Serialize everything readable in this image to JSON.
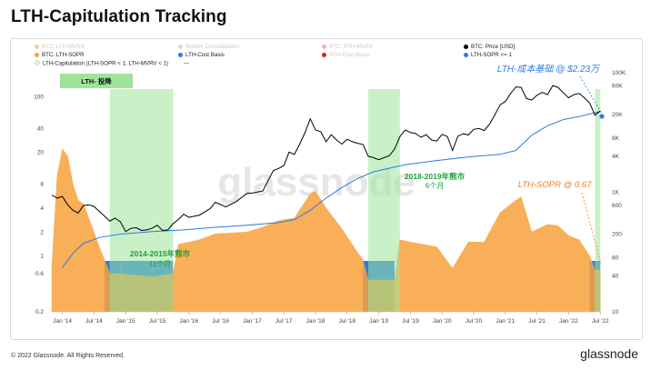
{
  "title": "LTH-Capitulation Tracking",
  "footer": {
    "copyright": "© 2022 Glassnode. All Rights Reserved.",
    "logo": "glassnode"
  },
  "watermark": "glassnode",
  "legend": [
    {
      "label": "BTC: LTH-MVRV",
      "color": "#f7a23b",
      "faded": true
    },
    {
      "label": "Bottom Consolidation",
      "color": "#7fd67f",
      "faded": true
    },
    {
      "label": "BTC: STH-MVRV",
      "color": "#f08080",
      "faded": true
    },
    {
      "label": "BTC: Price [USD]",
      "color": "#000000",
      "faded": false
    },
    {
      "label": "BTC: LTH-SOPR",
      "color": "#f7a23b",
      "faded": false
    },
    {
      "label": "LTH-Cost Basis",
      "color": "#2a7de1",
      "faded": false
    },
    {
      "label": "STH-Cost Basis",
      "color": "#e0201f",
      "faded": true
    },
    {
      "label": "LTH-SOPR <= 1",
      "color": "#2a7de1",
      "faded": false
    },
    {
      "label": "LTH-Capitulation (LTH-SOPR < 1, LTH-MVRV < 1)",
      "color": "#c8eec8",
      "faded": false,
      "line": "---"
    }
  ],
  "annotations": {
    "badge": "LTH- 投降",
    "cost_basis_note": "LTH-成本基础 @ $2.23万",
    "sopr_note": "LTH-SOPR @ 0.67",
    "bear_2014_title": "2014-2015年熊市",
    "bear_2014_sub": "11个月",
    "bear_2018_title": "2018-2019年熊市",
    "bear_2018_sub": "6个月"
  },
  "chart_data": {
    "type": "line",
    "x_axis": {
      "ticks": [
        "Jan '14",
        "Jul '14",
        "Jan '15",
        "Jul '15",
        "Jan '16",
        "Jul '16",
        "Jan '17",
        "Jul '17",
        "Jan '18",
        "Jul '18",
        "Jan '19",
        "Jul '19",
        "Jan '20",
        "Jul '20",
        "Jan '21",
        "Jul '21",
        "Jan '22",
        "Jul '22"
      ],
      "range": [
        "2013-11",
        "2022-08"
      ]
    },
    "y_left": {
      "scale": "log",
      "ticks": [
        "100",
        "40",
        "20",
        "8",
        "4",
        "2",
        "1",
        "0.6",
        "0.2"
      ],
      "range": [
        0.2,
        200
      ]
    },
    "y_right": {
      "scale": "log",
      "ticks": [
        "100K",
        "60K",
        "20K",
        "8K",
        "4K",
        "1K",
        "600",
        "200",
        "80",
        "40",
        "10"
      ],
      "range": [
        10,
        100000
      ]
    },
    "shaded_regions": [
      {
        "name": "LTH-Capitulation",
        "start": "2014-10",
        "end": "2015-10"
      },
      {
        "name": "LTH-Capitulation",
        "start": "2018-11",
        "end": "2019-05"
      },
      {
        "name": "LTH-Capitulation",
        "start": "2022-06",
        "end": "2022-07"
      }
    ],
    "series": [
      {
        "name": "BTC: Price [USD]",
        "color": "#000000",
        "points": [
          [
            "2013-11",
            900
          ],
          [
            "2013-12",
            800
          ],
          [
            "2014-01",
            850
          ],
          [
            "2014-02",
            620
          ],
          [
            "2014-03",
            500
          ],
          [
            "2014-04",
            450
          ],
          [
            "2014-05",
            600
          ],
          [
            "2014-06",
            620
          ],
          [
            "2014-07",
            580
          ],
          [
            "2014-08",
            480
          ],
          [
            "2014-09",
            400
          ],
          [
            "2014-10",
            330
          ],
          [
            "2014-11",
            370
          ],
          [
            "2014-12",
            320
          ],
          [
            "2015-01",
            220
          ],
          [
            "2015-02",
            250
          ],
          [
            "2015-03",
            255
          ],
          [
            "2015-04",
            230
          ],
          [
            "2015-05",
            235
          ],
          [
            "2015-06",
            250
          ],
          [
            "2015-07",
            280
          ],
          [
            "2015-08",
            230
          ],
          [
            "2015-09",
            235
          ],
          [
            "2015-10",
            300
          ],
          [
            "2015-11",
            350
          ],
          [
            "2015-12",
            430
          ],
          [
            "2016-01",
            380
          ],
          [
            "2016-03",
            415
          ],
          [
            "2016-05",
            530
          ],
          [
            "2016-06",
            680
          ],
          [
            "2016-08",
            570
          ],
          [
            "2016-10",
            700
          ],
          [
            "2016-12",
            960
          ],
          [
            "2017-01",
            970
          ],
          [
            "2017-03",
            1050
          ],
          [
            "2017-05",
            2300
          ],
          [
            "2017-06",
            2500
          ],
          [
            "2017-07",
            2800
          ],
          [
            "2017-08",
            4700
          ],
          [
            "2017-09",
            4300
          ],
          [
            "2017-10",
            6400
          ],
          [
            "2017-11",
            9900
          ],
          [
            "2017-12",
            17000
          ],
          [
            "2018-01",
            11000
          ],
          [
            "2018-02",
            10300
          ],
          [
            "2018-03",
            7000
          ],
          [
            "2018-04",
            9200
          ],
          [
            "2018-05",
            7500
          ],
          [
            "2018-06",
            6400
          ],
          [
            "2018-07",
            7700
          ],
          [
            "2018-08",
            7000
          ],
          [
            "2018-09",
            6600
          ],
          [
            "2018-10",
            6300
          ],
          [
            "2018-11",
            4000
          ],
          [
            "2018-12",
            3800
          ],
          [
            "2019-01",
            3500
          ],
          [
            "2019-02",
            3800
          ],
          [
            "2019-03",
            4100
          ],
          [
            "2019-04",
            5300
          ],
          [
            "2019-05",
            8500
          ],
          [
            "2019-06",
            11000
          ],
          [
            "2019-07",
            10000
          ],
          [
            "2019-08",
            9600
          ],
          [
            "2019-09",
            8300
          ],
          [
            "2019-10",
            9200
          ],
          [
            "2019-11",
            7500
          ],
          [
            "2019-12",
            7200
          ],
          [
            "2020-01",
            9300
          ],
          [
            "2020-02",
            8600
          ],
          [
            "2020-03",
            5000
          ],
          [
            "2020-04",
            8700
          ],
          [
            "2020-05",
            9500
          ],
          [
            "2020-06",
            9100
          ],
          [
            "2020-07",
            11300
          ],
          [
            "2020-08",
            11700
          ],
          [
            "2020-09",
            10800
          ],
          [
            "2020-10",
            13800
          ],
          [
            "2020-11",
            19700
          ],
          [
            "2020-12",
            29000
          ],
          [
            "2021-01",
            33000
          ],
          [
            "2021-02",
            45000
          ],
          [
            "2021-03",
            58000
          ],
          [
            "2021-04",
            57000
          ],
          [
            "2021-05",
            37000
          ],
          [
            "2021-06",
            35000
          ],
          [
            "2021-07",
            42000
          ],
          [
            "2021-08",
            47000
          ],
          [
            "2021-09",
            43000
          ],
          [
            "2021-10",
            61000
          ],
          [
            "2021-11",
            57000
          ],
          [
            "2021-12",
            46000
          ],
          [
            "2022-01",
            38000
          ],
          [
            "2022-02",
            43000
          ],
          [
            "2022-03",
            45000
          ],
          [
            "2022-04",
            38000
          ],
          [
            "2022-05",
            31000
          ],
          [
            "2022-06",
            19500
          ],
          [
            "2022-07",
            23000
          ]
        ]
      },
      {
        "name": "LTH-Cost Basis",
        "color": "#2a7de1",
        "points": [
          [
            "2014-01",
            55
          ],
          [
            "2014-03",
            95
          ],
          [
            "2014-05",
            140
          ],
          [
            "2014-08",
            175
          ],
          [
            "2014-12",
            200
          ],
          [
            "2015-06",
            220
          ],
          [
            "2015-12",
            235
          ],
          [
            "2016-06",
            260
          ],
          [
            "2016-12",
            280
          ],
          [
            "2017-06",
            310
          ],
          [
            "2017-09",
            350
          ],
          [
            "2017-12",
            500
          ],
          [
            "2018-03",
            800
          ],
          [
            "2018-06",
            1200
          ],
          [
            "2018-09",
            1700
          ],
          [
            "2018-12",
            2200
          ],
          [
            "2019-06",
            2900
          ],
          [
            "2019-12",
            3400
          ],
          [
            "2020-06",
            3900
          ],
          [
            "2020-12",
            4300
          ],
          [
            "2021-03",
            5000
          ],
          [
            "2021-06",
            9000
          ],
          [
            "2021-09",
            13000
          ],
          [
            "2021-12",
            16500
          ],
          [
            "2022-03",
            18500
          ],
          [
            "2022-06",
            21500
          ],
          [
            "2022-07",
            22300
          ]
        ]
      },
      {
        "name": "BTC: LTH-SOPR",
        "color": "#f7a23b",
        "points": [
          [
            "2013-11",
            0.7
          ],
          [
            "2013-12",
            10
          ],
          [
            "2014-01",
            22
          ],
          [
            "2014-02",
            18
          ],
          [
            "2014-03",
            8
          ],
          [
            "2014-04",
            5
          ],
          [
            "2014-05",
            4.5
          ],
          [
            "2014-06",
            3
          ],
          [
            "2014-07",
            2
          ],
          [
            "2014-08",
            1.3
          ],
          [
            "2014-09",
            0.9
          ],
          [
            "2014-10",
            0.6
          ],
          [
            "2014-12",
            0.6
          ],
          [
            "2015-06",
            0.55
          ],
          [
            "2015-10",
            0.6
          ],
          [
            "2015-11",
            1.4
          ],
          [
            "2016-03",
            1.6
          ],
          [
            "2016-06",
            1.9
          ],
          [
            "2016-12",
            2.0
          ],
          [
            "2017-03",
            2.3
          ],
          [
            "2017-06",
            2.8
          ],
          [
            "2017-09",
            3.0
          ],
          [
            "2017-12",
            6.0
          ],
          [
            "2018-01",
            6.5
          ],
          [
            "2018-03",
            4.0
          ],
          [
            "2018-06",
            2.2
          ],
          [
            "2018-09",
            1.1
          ],
          [
            "2018-10",
            0.9
          ],
          [
            "2018-11",
            0.5
          ],
          [
            "2019-04",
            0.5
          ],
          [
            "2019-05",
            1.6
          ],
          [
            "2019-07",
            1.5
          ],
          [
            "2019-12",
            1.3
          ],
          [
            "2020-03",
            0.7
          ],
          [
            "2020-06",
            1.5
          ],
          [
            "2020-09",
            1.5
          ],
          [
            "2020-12",
            3.5
          ],
          [
            "2021-03",
            5.0
          ],
          [
            "2021-04",
            5.5
          ],
          [
            "2021-06",
            2.0
          ],
          [
            "2021-09",
            2.5
          ],
          [
            "2021-11",
            2.4
          ],
          [
            "2022-01",
            1.8
          ],
          [
            "2022-03",
            1.6
          ],
          [
            "2022-05",
            1.0
          ],
          [
            "2022-06",
            0.67
          ],
          [
            "2022-07",
            0.67
          ]
        ]
      }
    ]
  }
}
